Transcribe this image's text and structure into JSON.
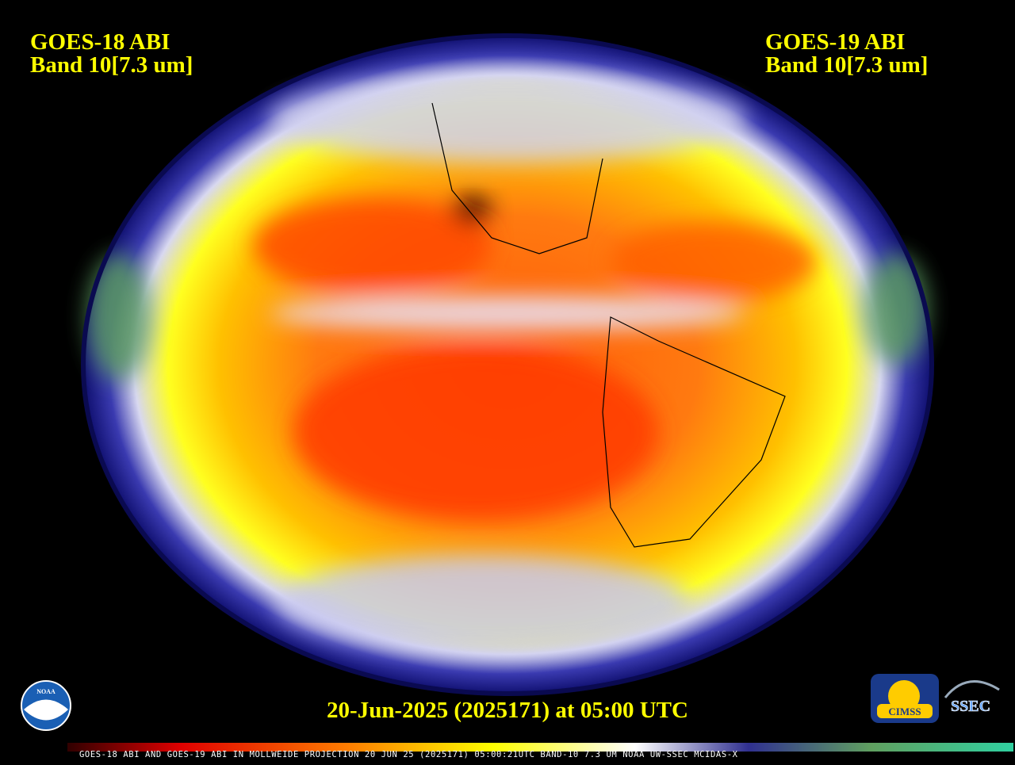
{
  "left_label": {
    "line1": "GOES-18 ABI",
    "line2": "Band 10[7.3 um]"
  },
  "right_label": {
    "line1": "GOES-19 ABI",
    "line2": "Band 10[7.3 um]"
  },
  "timestamp": "20-Jun-2025 (2025171) at 05:00 UTC",
  "logos": {
    "noaa": "NOAA",
    "cimss": "CIMSS",
    "ssec": "SSEC"
  },
  "footer": "GOES-18 ABI AND GOES-19 ABI IN MOLLWEIDE PROJECTION 20 JUN 25 (2025171) 05:00:21UTC BAND-10 7.3 UM NOAA UW-SSEC MCIDAS-X"
}
